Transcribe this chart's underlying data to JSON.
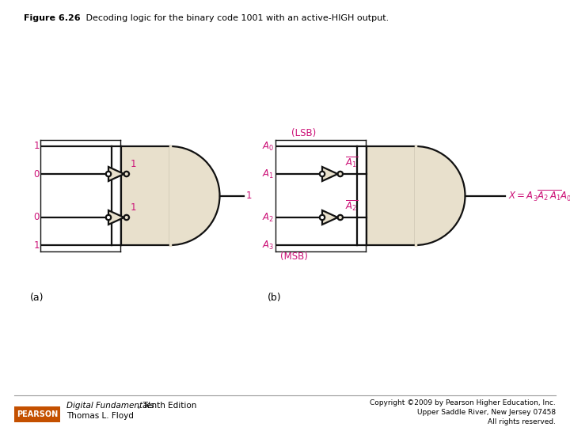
{
  "title_bold": "Figure 6.26",
  "title_rest": "   Decoding logic for the binary code 1001 with an active-HIGH output.",
  "gate_fill": "#e8e0cc",
  "gate_edge": "#111111",
  "line_color": "#111111",
  "magenta": "#cc1177",
  "bg_color": "#ffffff",
  "pearson_bg": "#c45000",
  "pearson_text": "PEARSON",
  "footer_italic": "Digital Fundamentals",
  "footer_rest": ", Tenth Edition",
  "footer_author": "Thomas L. Floyd",
  "footer_copyright": "Copyright ©2009 by Pearson Higher Education, Inc.",
  "footer_address": "Upper Saddle River, New Jersey 07458",
  "footer_rights": "All rights reserved."
}
